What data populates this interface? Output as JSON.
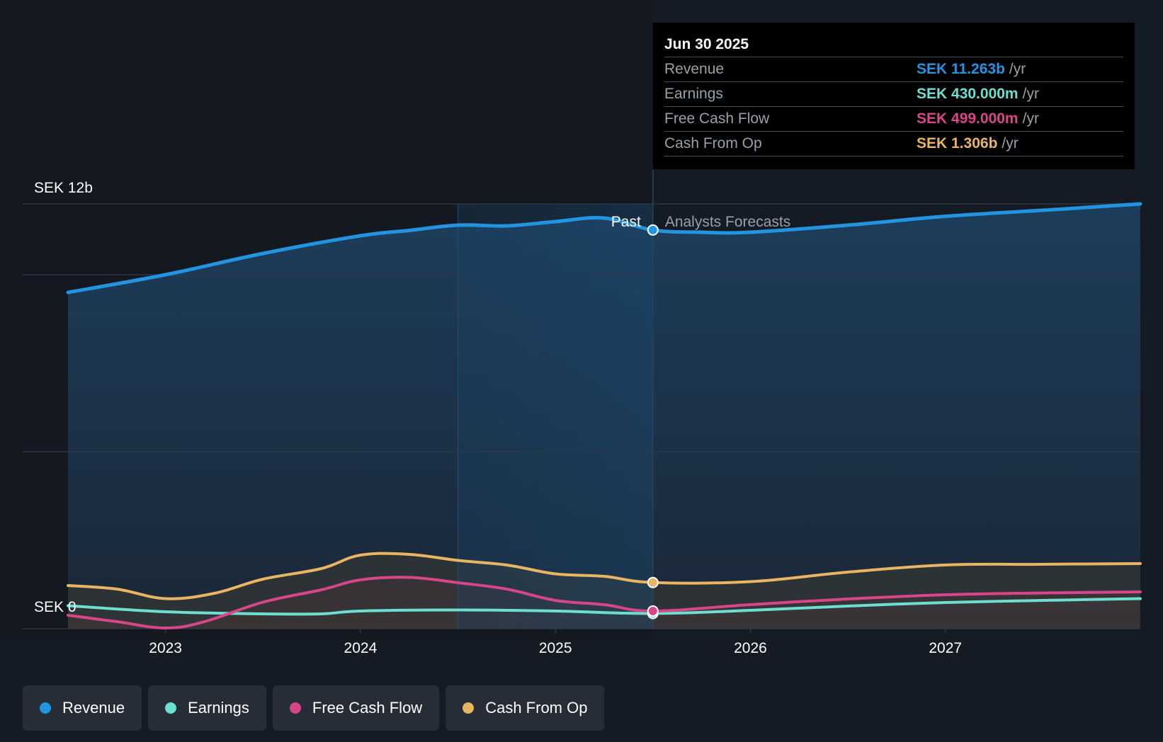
{
  "chart_data": {
    "type": "line",
    "title": "",
    "x_labels": [
      "2023",
      "2024",
      "2025",
      "2026",
      "2027"
    ],
    "x_range": [
      2022.5,
      2028.0
    ],
    "divider_x": 2025.5,
    "highlight_start_x": 2024.5,
    "ylim": [
      0,
      12
    ],
    "y_labels": [
      {
        "value": 12,
        "label": "SEK 12b"
      },
      {
        "value": 0,
        "label": "SEK 0"
      }
    ],
    "gridlines": [
      12,
      10,
      5,
      0
    ],
    "past_label": "Past",
    "forecast_label": "Analysts Forecasts",
    "series": [
      {
        "name": "Revenue",
        "color": "#2394df",
        "unit": "SEK b",
        "points": [
          [
            2022.5,
            9.5
          ],
          [
            2023.0,
            10.0
          ],
          [
            2023.5,
            10.6
          ],
          [
            2024.0,
            11.1
          ],
          [
            2024.25,
            11.25
          ],
          [
            2024.5,
            11.4
          ],
          [
            2024.75,
            11.38
          ],
          [
            2025.0,
            11.5
          ],
          [
            2025.25,
            11.6
          ],
          [
            2025.5,
            11.263
          ],
          [
            2025.75,
            11.2
          ],
          [
            2026.0,
            11.2
          ],
          [
            2026.5,
            11.4
          ],
          [
            2027.0,
            11.65
          ],
          [
            2027.5,
            11.82
          ],
          [
            2028.0,
            12.0
          ]
        ]
      },
      {
        "name": "Earnings",
        "color": "#6cdfd0",
        "unit": "SEK b",
        "points": [
          [
            2022.5,
            0.65
          ],
          [
            2023.0,
            0.48
          ],
          [
            2023.5,
            0.42
          ],
          [
            2023.8,
            0.42
          ],
          [
            2024.0,
            0.5
          ],
          [
            2024.5,
            0.53
          ],
          [
            2025.0,
            0.5
          ],
          [
            2025.5,
            0.43
          ],
          [
            2026.0,
            0.52
          ],
          [
            2026.5,
            0.64
          ],
          [
            2027.0,
            0.74
          ],
          [
            2027.5,
            0.8
          ],
          [
            2028.0,
            0.85
          ]
        ]
      },
      {
        "name": "Free Cash Flow",
        "color": "#d8468a",
        "unit": "SEK b",
        "points": [
          [
            2022.5,
            0.38
          ],
          [
            2022.75,
            0.2
          ],
          [
            2023.0,
            0.02
          ],
          [
            2023.2,
            0.2
          ],
          [
            2023.5,
            0.75
          ],
          [
            2023.8,
            1.1
          ],
          [
            2024.0,
            1.38
          ],
          [
            2024.25,
            1.45
          ],
          [
            2024.5,
            1.3
          ],
          [
            2024.75,
            1.12
          ],
          [
            2025.0,
            0.8
          ],
          [
            2025.25,
            0.68
          ],
          [
            2025.5,
            0.499
          ],
          [
            2026.0,
            0.68
          ],
          [
            2026.5,
            0.84
          ],
          [
            2027.0,
            0.96
          ],
          [
            2027.5,
            1.01
          ],
          [
            2028.0,
            1.04
          ]
        ]
      },
      {
        "name": "Cash From Op",
        "color": "#e9b563",
        "unit": "SEK b",
        "points": [
          [
            2022.5,
            1.22
          ],
          [
            2022.75,
            1.12
          ],
          [
            2023.0,
            0.85
          ],
          [
            2023.25,
            1.0
          ],
          [
            2023.5,
            1.4
          ],
          [
            2023.8,
            1.7
          ],
          [
            2024.0,
            2.08
          ],
          [
            2024.25,
            2.1
          ],
          [
            2024.5,
            1.93
          ],
          [
            2024.75,
            1.8
          ],
          [
            2025.0,
            1.55
          ],
          [
            2025.25,
            1.48
          ],
          [
            2025.5,
            1.306
          ],
          [
            2026.0,
            1.33
          ],
          [
            2026.5,
            1.6
          ],
          [
            2027.0,
            1.8
          ],
          [
            2027.5,
            1.82
          ],
          [
            2028.0,
            1.84
          ]
        ]
      }
    ]
  },
  "tooltip": {
    "date": "Jun 30 2025",
    "rows": [
      {
        "label": "Revenue",
        "value": "SEK 11.263b",
        "unit": "/yr",
        "color": "#2394df"
      },
      {
        "label": "Earnings",
        "value": "SEK 430.000m",
        "unit": "/yr",
        "color": "#6cdfd0"
      },
      {
        "label": "Free Cash Flow",
        "value": "SEK 499.000m",
        "unit": "/yr",
        "color": "#d8468a"
      },
      {
        "label": "Cash From Op",
        "value": "SEK 1.306b",
        "unit": "/yr",
        "color": "#e9b563"
      }
    ]
  },
  "legend": [
    {
      "label": "Revenue",
      "color": "#2394df"
    },
    {
      "label": "Earnings",
      "color": "#6cdfd0"
    },
    {
      "label": "Free Cash Flow",
      "color": "#d8468a"
    },
    {
      "label": "Cash From Op",
      "color": "#e9b563"
    }
  ]
}
